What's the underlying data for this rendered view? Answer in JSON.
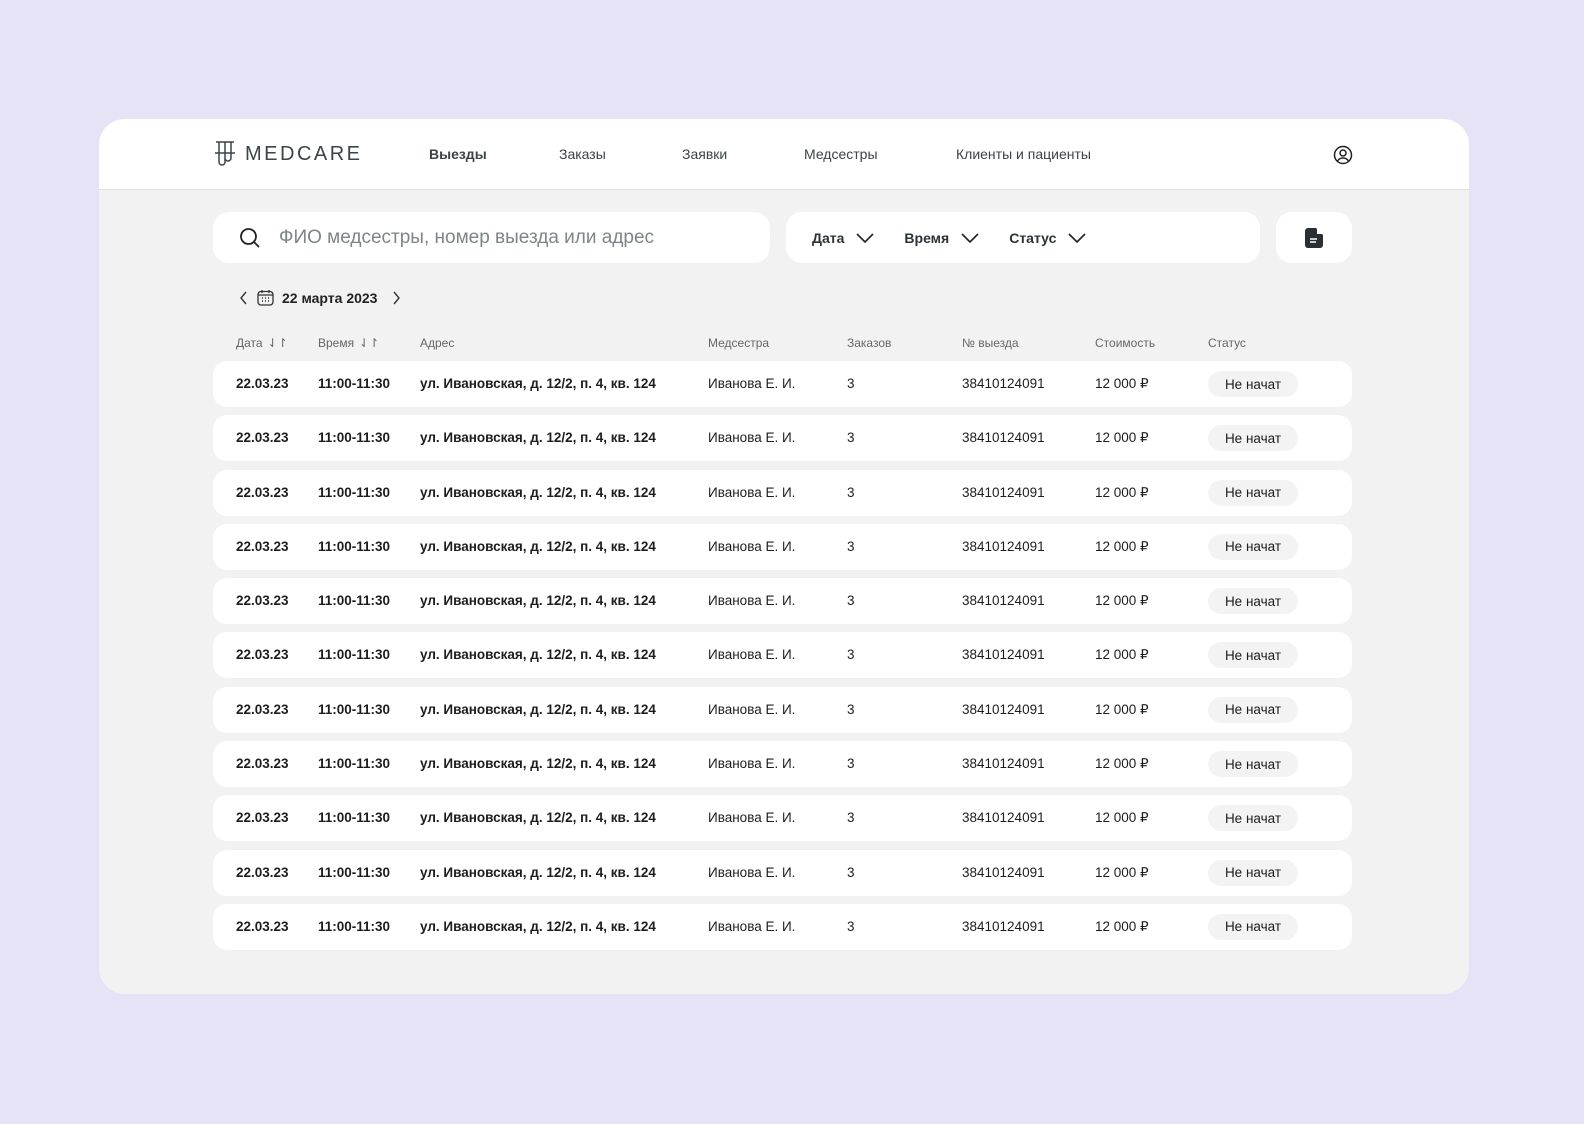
{
  "app": {
    "logo": "MEDCARE"
  },
  "nav": [
    {
      "label": "Выезды",
      "active": true
    },
    {
      "label": "Заказы"
    },
    {
      "label": "Заявки"
    },
    {
      "label": "Медсестры"
    },
    {
      "label": "Клиенты и пациенты"
    }
  ],
  "search": {
    "placeholder": "ФИО медсестры, номер выезда или адрес"
  },
  "filters": [
    "Дата",
    "Время",
    "Статус"
  ],
  "date_nav": {
    "current": "22 марта 2023"
  },
  "table": {
    "headers": [
      "Дата",
      "Время",
      "Адрес",
      "Медсестра",
      "Заказов",
      "№ выезда",
      "Стоимость",
      "Статус"
    ],
    "rows": [
      [
        "22.03.23",
        "11:00-11:30",
        "ул. Ивановская, д. 12/2, п. 4, кв. 124",
        "Иванова Е. И.",
        "3",
        "38410124091",
        "12 000 ₽",
        "Не начат"
      ],
      [
        "22.03.23",
        "11:00-11:30",
        "ул. Ивановская, д. 12/2, п. 4, кв. 124",
        "Иванова Е. И.",
        "3",
        "38410124091",
        "12 000 ₽",
        "Не начат"
      ],
      [
        "22.03.23",
        "11:00-11:30",
        "ул. Ивановская, д. 12/2, п. 4, кв. 124",
        "Иванова Е. И.",
        "3",
        "38410124091",
        "12 000 ₽",
        "Не начат"
      ],
      [
        "22.03.23",
        "11:00-11:30",
        "ул. Ивановская, д. 12/2, п. 4, кв. 124",
        "Иванова Е. И.",
        "3",
        "38410124091",
        "12 000 ₽",
        "Не начат"
      ],
      [
        "22.03.23",
        "11:00-11:30",
        "ул. Ивановская, д. 12/2, п. 4, кв. 124",
        "Иванова Е. И.",
        "3",
        "38410124091",
        "12 000 ₽",
        "Не начат"
      ],
      [
        "22.03.23",
        "11:00-11:30",
        "ул. Ивановская, д. 12/2, п. 4, кв. 124",
        "Иванова Е. И.",
        "3",
        "38410124091",
        "12 000 ₽",
        "Не начат"
      ],
      [
        "22.03.23",
        "11:00-11:30",
        "ул. Ивановская, д. 12/2, п. 4, кв. 124",
        "Иванова Е. И.",
        "3",
        "38410124091",
        "12 000 ₽",
        "Не начат"
      ],
      [
        "22.03.23",
        "11:00-11:30",
        "ул. Ивановская, д. 12/2, п. 4, кв. 124",
        "Иванова Е. И.",
        "3",
        "38410124091",
        "12 000 ₽",
        "Не начат"
      ],
      [
        "22.03.23",
        "11:00-11:30",
        "ул. Ивановская, д. 12/2, п. 4, кв. 124",
        "Иванова Е. И.",
        "3",
        "38410124091",
        "12 000 ₽",
        "Не начат"
      ],
      [
        "22.03.23",
        "11:00-11:30",
        "ул. Ивановская, д. 12/2, п. 4, кв. 124",
        "Иванова Е. И.",
        "3",
        "38410124091",
        "12 000 ₽",
        "Не начат"
      ],
      [
        "22.03.23",
        "11:00-11:30",
        "ул. Ивановская, д. 12/2, п. 4, кв. 124",
        "Иванова Е. И.",
        "3",
        "38410124091",
        "12 000 ₽",
        "Не начат"
      ]
    ]
  }
}
